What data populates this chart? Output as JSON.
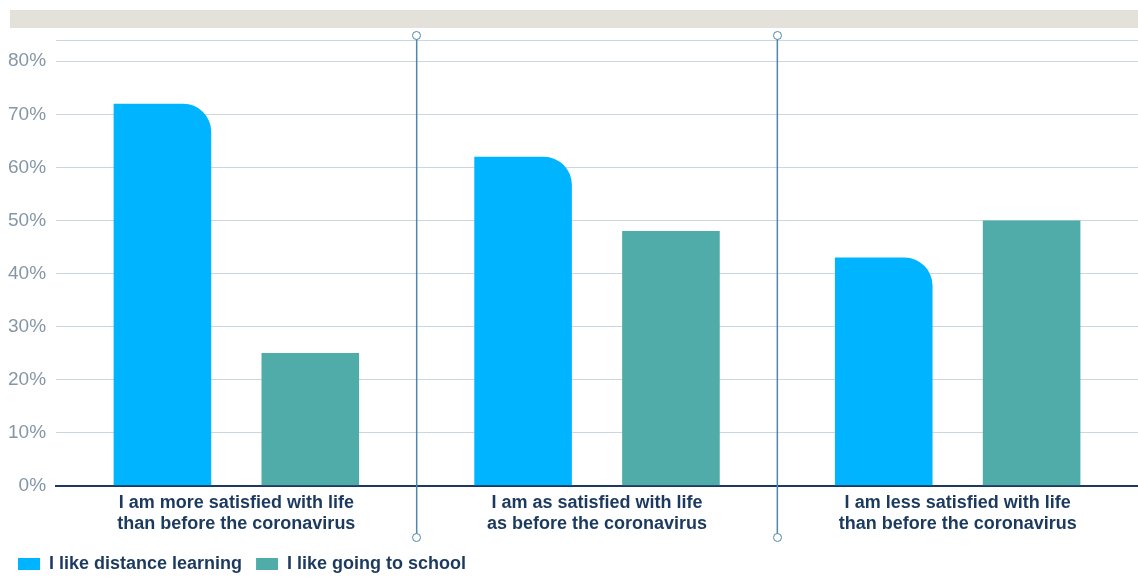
{
  "chart_data": {
    "type": "bar",
    "categories": [
      "I am more satisfied with life than before the coronavirus",
      "I am as satisfied with life as before the coronavirus",
      "I am less satisfied with life than before the coronavirus"
    ],
    "series": [
      {
        "name": "I like distance learning",
        "color": "#00b4ff",
        "values": [
          72,
          62,
          43
        ]
      },
      {
        "name": "I like going to school",
        "color": "#50aca8",
        "values": [
          25,
          48,
          50
        ]
      }
    ],
    "ylim": [
      0,
      84
    ],
    "yticks": [
      {
        "value": 0,
        "label": "0%"
      },
      {
        "value": 10,
        "label": "10%"
      },
      {
        "value": 20,
        "label": "20%"
      },
      {
        "value": 30,
        "label": "30%"
      },
      {
        "value": 40,
        "label": "40%"
      },
      {
        "value": 50,
        "label": "50%"
      },
      {
        "value": 60,
        "label": "60%"
      },
      {
        "value": 70,
        "label": "70%"
      },
      {
        "value": 80,
        "label": "80%"
      },
      {
        "value": 84,
        "label": null
      }
    ],
    "grid": "y",
    "legend": "bottom left"
  }
}
